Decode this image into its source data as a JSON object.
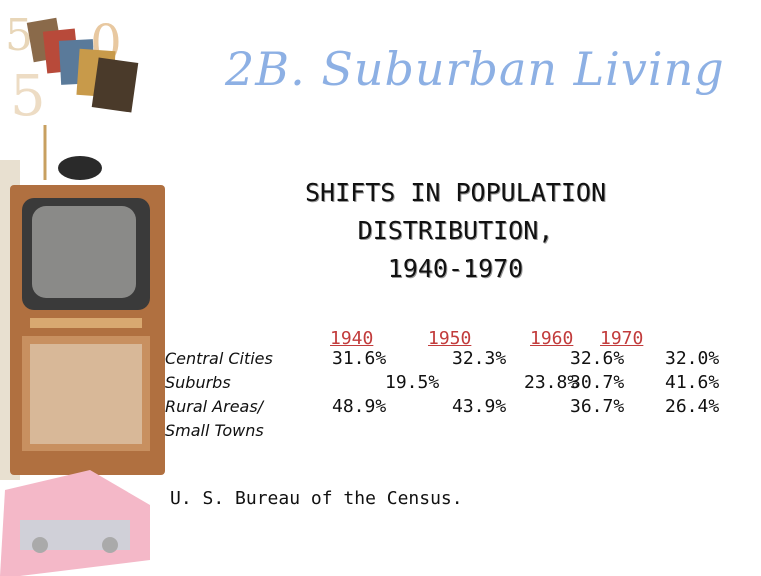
{
  "header": {
    "title": "2B. Suburban Living"
  },
  "subtitle": {
    "lines": [
      "SHIFTS IN POPULATION",
      "DISTRIBUTION,",
      "1940-1970"
    ]
  },
  "table": {
    "years": [
      "1940",
      "1950",
      "1960",
      "1970"
    ],
    "row_labels": [
      "Central Cities",
      "Suburbs",
      "Rural Areas/",
      "Small Towns"
    ],
    "rows": [
      [
        "31.6%",
        "32.3%",
        "32.6%",
        "32.0%"
      ],
      [
        "19.5%",
        "23.8%",
        "30.7%",
        "41.6%"
      ],
      [
        "48.9%",
        "43.9%",
        "36.7%",
        "26.4%"
      ]
    ]
  },
  "source": "U. S. Bureau of the Census."
}
